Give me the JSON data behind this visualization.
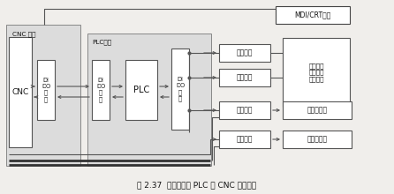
{
  "title": "图 2.37  具有独立型 PLC 的 CNC 系统框图",
  "lc": "#555555",
  "lc_dark": "#333333",
  "bc": "#ffffff",
  "tc": "#111111",
  "bg": "#f0eeeb",
  "outer_bg": "#dcdcdc",
  "cnc_device_label": "CNC 装置",
  "plc_device_label": "PLC装置",
  "cnc_box": "CNC",
  "cnc_dio": "DI\nDO\n电\n路",
  "plc_dio1": "DI\nDO\n电\n路",
  "plc_main": "PLC",
  "plc_dio2": "DI\nDO\n电\n路",
  "mdi_crt": "MDI/CRT面板",
  "op_panel": "操作面板",
  "power_circuit": "强电电路",
  "spindle_unit": "主轴单元",
  "feed_unit": "进给单元",
  "aux_ops": "辅助动作\n换刀动作\n冷却开关",
  "spindle_motor": "主轴电动机",
  "feed_motor": "进给电动机"
}
